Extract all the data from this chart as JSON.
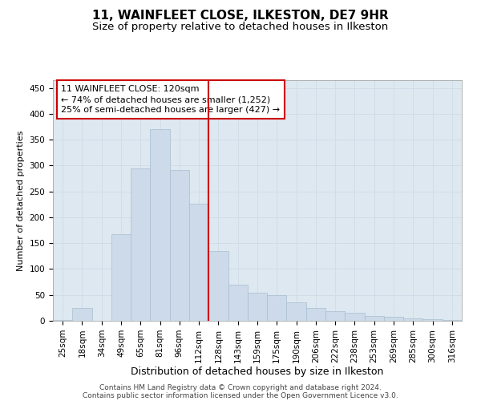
{
  "title": "11, WAINFLEET CLOSE, ILKESTON, DE7 9HR",
  "subtitle": "Size of property relative to detached houses in Ilkeston",
  "xlabel": "Distribution of detached houses by size in Ilkeston",
  "ylabel": "Number of detached properties",
  "bar_labels": [
    "25sqm",
    "18sqm",
    "34sqm",
    "49sqm",
    "65sqm",
    "81sqm",
    "96sqm",
    "112sqm",
    "128sqm",
    "143sqm",
    "159sqm",
    "175sqm",
    "190sqm",
    "206sqm",
    "222sqm",
    "238sqm",
    "253sqm",
    "269sqm",
    "285sqm",
    "300sqm",
    "316sqm"
  ],
  "values": [
    2,
    25,
    0,
    168,
    295,
    370,
    291,
    226,
    135,
    70,
    55,
    50,
    35,
    25,
    18,
    15,
    10,
    7,
    4,
    3,
    2
  ],
  "bar_color": "#ccdaea",
  "bar_edgecolor": "#a8bece",
  "vline_color": "#cc0000",
  "annotation_text": "11 WAINFLEET CLOSE: 120sqm\n← 74% of detached houses are smaller (1,252)\n25% of semi-detached houses are larger (427) →",
  "annotation_box_facecolor": "#ffffff",
  "annotation_box_edgecolor": "#cc0000",
  "ylim": [
    0,
    465
  ],
  "yticks": [
    0,
    50,
    100,
    150,
    200,
    250,
    300,
    350,
    400,
    450
  ],
  "grid_color": "#d0dce8",
  "background_color": "#dde8f0",
  "footer1": "Contains HM Land Registry data © Crown copyright and database right 2024.",
  "footer2": "Contains public sector information licensed under the Open Government Licence v3.0.",
  "title_fontsize": 11,
  "subtitle_fontsize": 9.5,
  "xlabel_fontsize": 9,
  "ylabel_fontsize": 8,
  "tick_fontsize": 7.5,
  "annotation_fontsize": 8,
  "footer_fontsize": 6.5
}
